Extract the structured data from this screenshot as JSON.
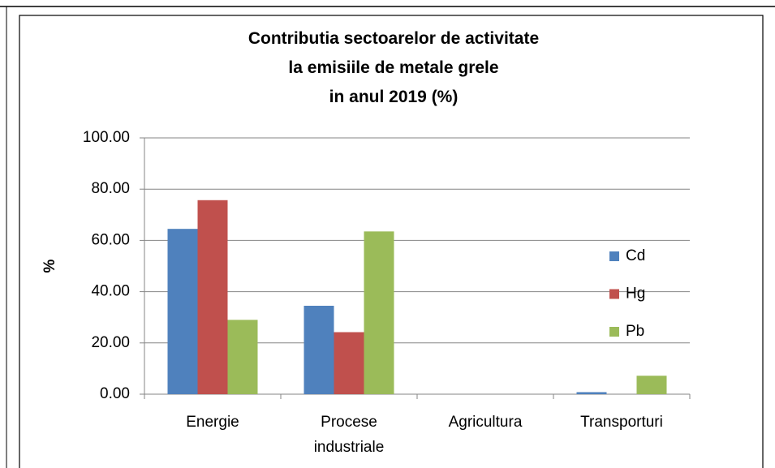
{
  "chart_data": {
    "type": "bar",
    "title": "Contributia sectoarelor de activitate\nla emisiile de metale grele\nin anul 2019 (%)",
    "y_label": "%",
    "categories": [
      "Energie",
      "Procese\nindustriale",
      "Agricultura",
      "Transporturi"
    ],
    "series": [
      {
        "name": "Cd",
        "color": "#4f81bd",
        "values": [
          64.5,
          34.5,
          0,
          0.8
        ]
      },
      {
        "name": "Hg",
        "color": "#c0504d",
        "values": [
          75.7,
          24.2,
          0,
          0
        ]
      },
      {
        "name": "Pb",
        "color": "#9bbb59",
        "values": [
          29,
          63.5,
          0,
          7.2
        ]
      }
    ],
    "ylim": [
      0,
      100
    ],
    "yticks": [
      {
        "value": 0,
        "label": "0.00"
      },
      {
        "value": 20,
        "label": "20.00"
      },
      {
        "value": 40,
        "label": "40.00"
      },
      {
        "value": 60,
        "label": "60.00"
      },
      {
        "value": 80,
        "label": "80.00"
      },
      {
        "value": 100,
        "label": "100.00"
      }
    ],
    "grid": true,
    "legend": "right"
  }
}
